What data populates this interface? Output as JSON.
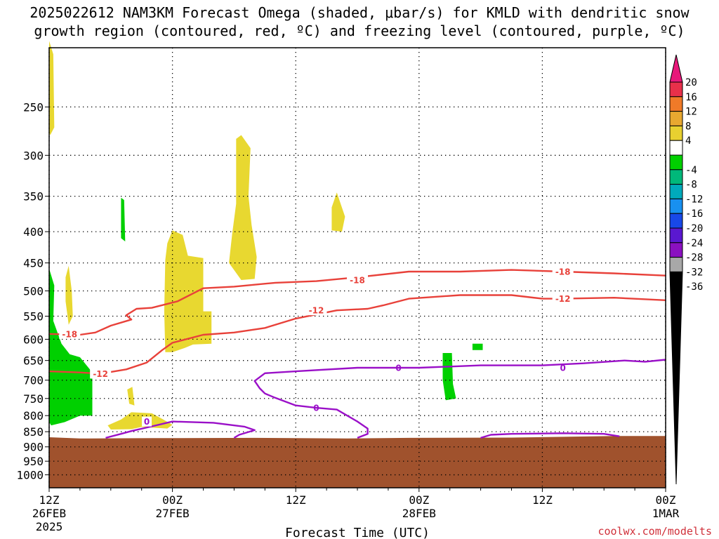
{
  "title": {
    "line1": "2025022612 NAM3KM Forecast Omega (shaded, μbar/s) for KMLD with dendritic snow",
    "line2": "growth region (contoured, red, ºC) and freezing level (contoured, purple, ºC)"
  },
  "x_axis_title": "Forecast Time (UTC)",
  "credit": "coolwx.com/modelts",
  "x_ticks": [
    {
      "h": 0,
      "l1": "12Z",
      "l2": "26FEB",
      "l3": "2025"
    },
    {
      "h": 12,
      "l1": "00Z",
      "l2": "27FEB",
      "l3": ""
    },
    {
      "h": 24,
      "l1": "12Z",
      "l2": "",
      "l3": ""
    },
    {
      "h": 36,
      "l1": "00Z",
      "l2": "28FEB",
      "l3": ""
    },
    {
      "h": 48,
      "l1": "12Z",
      "l2": "",
      "l3": ""
    },
    {
      "h": 60,
      "l1": "00Z",
      "l2": "1MAR",
      "l3": ""
    }
  ],
  "colorbar": {
    "labels": [
      "20",
      "16",
      "12",
      "8",
      "4",
      "-4",
      "-8",
      "-12",
      "-16",
      "-20",
      "-24",
      "-28",
      "-32",
      "-36"
    ],
    "colors": [
      "#e8304a",
      "#f07a28",
      "#e8a830",
      "#e8d030",
      "#ffffff",
      "#00d000",
      "#00b87a",
      "#00aabb",
      "#1890f0",
      "#1848e8",
      "#5a18d0",
      "#8a10c0",
      "#a8a8a8"
    ],
    "top_color": "#e8187a",
    "bottom_color": "#000000"
  },
  "colors": {
    "ground": "#a0522d",
    "dgz": "#e8413a",
    "freezing": "#9a10c8",
    "omega_pos": "#e8d830",
    "omega_neg": "#00d000"
  },
  "chart_data": {
    "type": "time-height cross section",
    "x_unit": "forecast hour",
    "xlim": [
      0,
      60
    ],
    "y_unit": "hPa",
    "ylim": [
      1050,
      200
    ],
    "y_log": true,
    "grid": true,
    "y_ticks": [
      250,
      300,
      350,
      400,
      450,
      500,
      550,
      600,
      650,
      700,
      750,
      800,
      850,
      900,
      950,
      1000
    ],
    "ground_pressure": [
      [
        0,
        868
      ],
      [
        3,
        872
      ],
      [
        10,
        871
      ],
      [
        20,
        870
      ],
      [
        29,
        872
      ],
      [
        35,
        870
      ],
      [
        45,
        869
      ],
      [
        55,
        864
      ],
      [
        60,
        864
      ]
    ],
    "contours": [
      {
        "level": "-18",
        "color": "dgz",
        "labels": [
          [
            2,
            588
          ],
          [
            30,
            480
          ],
          [
            50,
            465
          ]
        ],
        "points": [
          [
            0,
            588
          ],
          [
            3,
            590
          ],
          [
            4.5,
            585
          ],
          [
            6,
            570
          ],
          [
            8,
            557
          ],
          [
            7.5,
            548
          ],
          [
            8.5,
            535
          ],
          [
            10,
            533
          ],
          [
            12.5,
            520
          ],
          [
            15,
            495
          ],
          [
            18,
            492
          ],
          [
            22,
            485
          ],
          [
            26,
            482
          ],
          [
            30,
            475
          ],
          [
            35,
            465
          ],
          [
            40,
            465
          ],
          [
            45,
            462
          ],
          [
            50,
            465
          ],
          [
            55,
            468
          ],
          [
            60,
            472
          ]
        ]
      },
      {
        "level": "-12",
        "color": "dgz",
        "labels": [
          [
            5,
            683
          ],
          [
            26,
            538
          ],
          [
            50,
            515
          ]
        ],
        "points": [
          [
            0,
            677
          ],
          [
            3,
            680
          ],
          [
            5,
            683
          ],
          [
            7.5,
            672
          ],
          [
            9.5,
            655
          ],
          [
            11,
            625
          ],
          [
            12,
            608
          ],
          [
            15,
            590
          ],
          [
            18,
            585
          ],
          [
            21,
            575
          ],
          [
            24,
            555
          ],
          [
            28,
            538
          ],
          [
            31,
            535
          ],
          [
            32.5,
            528
          ],
          [
            35,
            515
          ],
          [
            40,
            508
          ],
          [
            45,
            508
          ],
          [
            48,
            515
          ],
          [
            50,
            515
          ],
          [
            55,
            513
          ],
          [
            60,
            518
          ]
        ]
      },
      {
        "level": "0",
        "color": "freezing",
        "labels": [
          [
            9.5,
            818
          ],
          [
            26,
            777
          ],
          [
            34,
            668
          ],
          [
            50,
            668
          ]
        ],
        "points": [
          [
            5.5,
            870
          ],
          [
            7,
            857
          ],
          [
            8,
            848
          ],
          [
            10,
            833
          ],
          [
            12,
            818
          ],
          [
            16,
            822
          ],
          [
            19,
            834
          ],
          [
            20,
            845
          ],
          [
            18.5,
            860
          ],
          [
            18,
            870
          ]
        ]
      },
      {
        "level": "0",
        "color": "freezing",
        "labels": [],
        "points": [
          [
            30,
            870
          ],
          [
            31,
            857
          ],
          [
            31,
            840
          ],
          [
            30,
            818
          ],
          [
            28,
            782
          ],
          [
            26,
            777
          ],
          [
            24,
            770
          ],
          [
            22,
            748
          ],
          [
            21,
            736
          ],
          [
            20.5,
            722
          ],
          [
            20,
            702
          ],
          [
            21,
            682
          ],
          [
            24,
            677
          ],
          [
            30,
            668
          ],
          [
            36,
            668
          ],
          [
            42,
            662
          ],
          [
            48,
            662
          ],
          [
            52,
            657
          ],
          [
            56,
            650
          ],
          [
            58,
            653
          ],
          [
            60,
            648
          ]
        ]
      },
      {
        "level": "0",
        "color": "freezing",
        "labels": [],
        "points": [
          [
            42,
            870
          ],
          [
            43,
            860
          ],
          [
            45,
            857
          ],
          [
            50,
            855
          ],
          [
            54,
            857
          ],
          [
            55.5,
            865
          ]
        ]
      }
    ],
    "omega_regions": [
      {
        "sign": "positive",
        "value_range": [
          4,
          8
        ],
        "outline": [
          [
            0,
            195
          ],
          [
            0.4,
            205
          ],
          [
            0.5,
            270
          ],
          [
            0.1,
            278
          ],
          [
            0,
            275
          ]
        ]
      },
      {
        "sign": "positive",
        "value_range": [
          4,
          8
        ],
        "outline": [
          [
            1.6,
            475
          ],
          [
            1.9,
            455
          ],
          [
            2.2,
            500
          ],
          [
            2.3,
            550
          ],
          [
            1.9,
            568
          ],
          [
            1.6,
            520
          ]
        ]
      },
      {
        "sign": "positive",
        "value_range": [
          4,
          8
        ],
        "outline": [
          [
            7.6,
            725
          ],
          [
            8.1,
            718
          ],
          [
            8.3,
            770
          ],
          [
            7.8,
            765
          ]
        ]
      },
      {
        "sign": "positive",
        "value_range": [
          4,
          8
        ],
        "outline": [
          [
            5.7,
            830
          ],
          [
            7,
            812
          ],
          [
            8,
            790
          ],
          [
            10,
            793
          ],
          [
            11,
            810
          ],
          [
            12,
            828
          ],
          [
            11.5,
            840
          ],
          [
            9,
            835
          ],
          [
            8,
            842
          ],
          [
            6,
            843
          ]
        ]
      },
      {
        "sign": "positive",
        "value_range": [
          4,
          8
        ],
        "outline": [
          [
            11.3,
            445
          ],
          [
            11.5,
            418
          ],
          [
            12,
            398
          ],
          [
            13,
            405
          ],
          [
            13.5,
            438
          ],
          [
            15,
            442
          ],
          [
            15,
            540
          ],
          [
            15.8,
            540
          ],
          [
            15.8,
            610
          ],
          [
            14,
            612
          ],
          [
            13.2,
            620
          ],
          [
            12,
            630
          ],
          [
            11.3,
            630
          ],
          [
            11.2,
            540
          ]
        ]
      },
      {
        "sign": "positive",
        "value_range": [
          4,
          8
        ],
        "outline": [
          [
            18.2,
            282
          ],
          [
            18.7,
            278
          ],
          [
            19.6,
            292
          ],
          [
            19.4,
            350
          ],
          [
            19.7,
            390
          ],
          [
            20.2,
            440
          ],
          [
            20,
            478
          ],
          [
            18.7,
            480
          ],
          [
            17.5,
            450
          ],
          [
            17.8,
            405
          ],
          [
            18.2,
            360
          ],
          [
            18.2,
            300
          ]
        ]
      },
      {
        "sign": "positive",
        "value_range": [
          4,
          8
        ],
        "outline": [
          [
            27.5,
            365
          ],
          [
            28,
            345
          ],
          [
            28.8,
            378
          ],
          [
            28.5,
            400
          ],
          [
            27.5,
            398
          ]
        ]
      },
      {
        "sign": "negative",
        "value_range": [
          -8,
          -4
        ],
        "outline": [
          [
            0,
            460
          ],
          [
            0.5,
            490
          ],
          [
            0.4,
            560
          ],
          [
            1.2,
            610
          ],
          [
            2,
            635
          ],
          [
            3,
            642
          ],
          [
            4.2,
            680
          ],
          [
            4.2,
            800
          ],
          [
            3,
            800
          ],
          [
            1.5,
            820
          ],
          [
            0.2,
            830
          ],
          [
            0,
            820
          ]
        ]
      },
      {
        "sign": "negative",
        "value_range": [
          -8,
          -4
        ],
        "outline": [
          [
            7,
            352
          ],
          [
            7.3,
            355
          ],
          [
            7.4,
            415
          ],
          [
            7,
            410
          ]
        ]
      },
      {
        "sign": "negative",
        "value_range": [
          -8,
          -4
        ],
        "outline": [
          [
            38.3,
            632
          ],
          [
            39.2,
            632
          ],
          [
            39.3,
            710
          ],
          [
            39.6,
            750
          ],
          [
            38.6,
            755
          ],
          [
            38.3,
            700
          ]
        ]
      },
      {
        "sign": "negative",
        "value_range": [
          -8,
          -4
        ],
        "outline": [
          [
            41.2,
            610
          ],
          [
            42.2,
            610
          ],
          [
            42.2,
            625
          ],
          [
            41.2,
            625
          ]
        ]
      }
    ]
  }
}
